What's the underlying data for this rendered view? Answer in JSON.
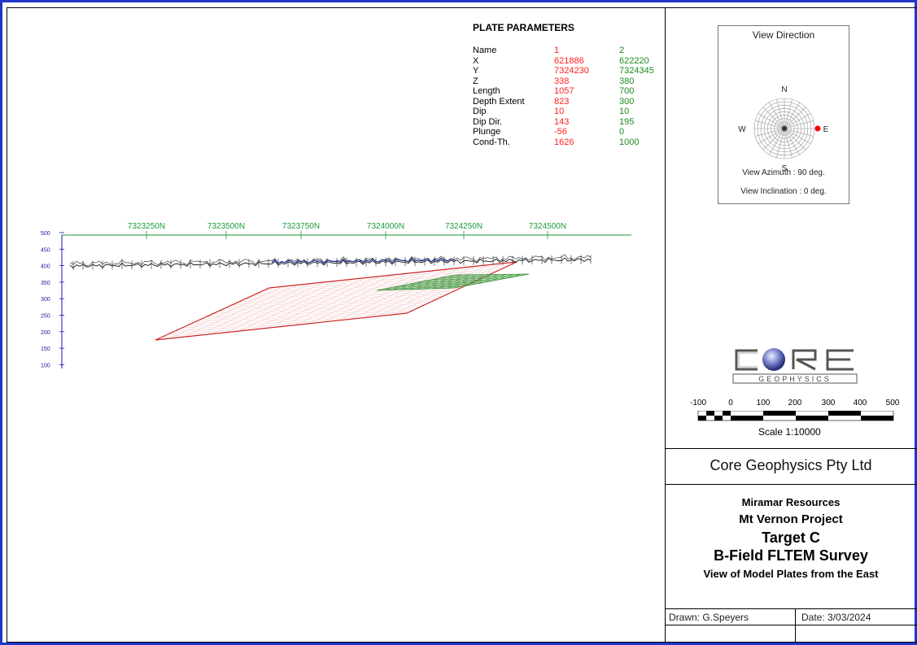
{
  "plate_parameters": {
    "title": "PLATE PARAMETERS",
    "rows": [
      {
        "label": "Name",
        "plate1": "1",
        "plate2": "2"
      },
      {
        "label": "X",
        "plate1": "621886",
        "plate2": "622220"
      },
      {
        "label": "Y",
        "plate1": "7324230",
        "plate2": "7324345"
      },
      {
        "label": "Z",
        "plate1": "338",
        "plate2": "380"
      },
      {
        "label": "Length",
        "plate1": "1057",
        "plate2": "700"
      },
      {
        "label": "Depth Extent",
        "plate1": "823",
        "plate2": "300"
      },
      {
        "label": "Dip",
        "plate1": "10",
        "plate2": "10"
      },
      {
        "label": "Dip Dir.",
        "plate1": "143",
        "plate2": "195"
      },
      {
        "label": "Plunge",
        "plate1": "-56",
        "plate2": "0"
      },
      {
        "label": "Cond-Th.",
        "plate1": "1626",
        "plate2": "1000"
      }
    ],
    "colors": {
      "plate1": "#ff1f1f",
      "plate2": "#1c8a1c"
    }
  },
  "view_direction": {
    "title": "View Direction",
    "north": "N",
    "south": "S",
    "east": "E",
    "west": "W",
    "azimuth_text": "View Azimuth : 90 deg.",
    "inclination_text": "View Inclination : 0 deg.",
    "azimuth_deg": 90,
    "marker_color": "#ff0000"
  },
  "section": {
    "northing_labels": [
      "7323250N",
      "7323500N",
      "7323750N",
      "7324000N",
      "7324250N",
      "7324500N"
    ],
    "elevation_labels": [
      "500",
      "450",
      "400",
      "350",
      "300",
      "250",
      "200",
      "150",
      "100"
    ],
    "northing_color": "#1c9a3a",
    "elevation_color": "#1a1aa0"
  },
  "logo": {
    "word1": "CORE",
    "word2": "GEOPHYSICS"
  },
  "scale": {
    "ticks": [
      "-100",
      "0",
      "100",
      "200",
      "300",
      "400",
      "500"
    ],
    "label": "Scale 1:10000"
  },
  "title_block": {
    "company": "Core Geophysics Pty Ltd",
    "client": "Miramar Resources",
    "project": "Mt Vernon Project",
    "target": "Target C",
    "survey": "B-Field FLTEM Survey",
    "view": "View of Model Plates from the East",
    "drawn": "Drawn: G.Speyers",
    "date": "Date: 3/03/2024"
  }
}
